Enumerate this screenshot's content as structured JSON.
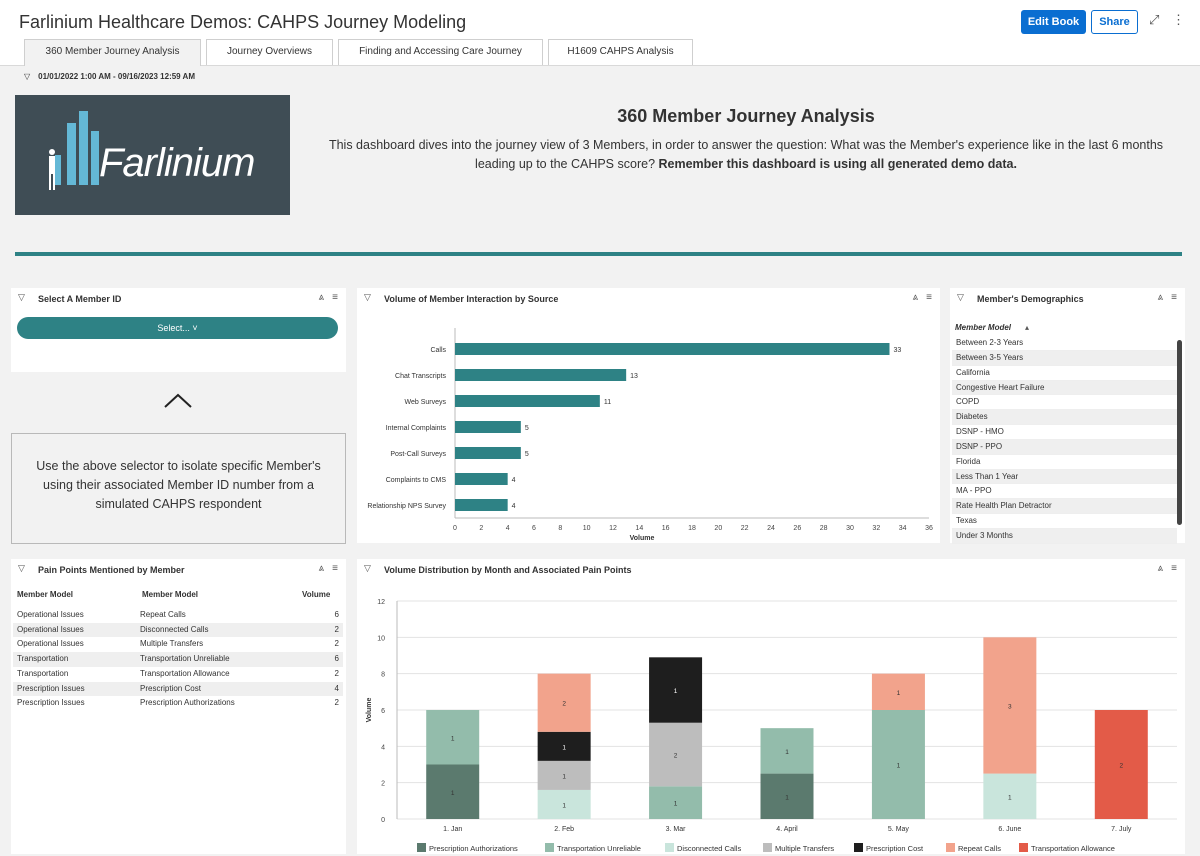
{
  "app": {
    "title": "Farlinium Healthcare Demos: CAHPS Journey Modeling",
    "edit_label": "Edit Book",
    "share_label": "Share"
  },
  "header_icons": [
    "expand-icon",
    "more-icon"
  ],
  "tabs": [
    {
      "label": "360 Member Journey Analysis",
      "active": true
    },
    {
      "label": "Journey Overviews",
      "active": false
    },
    {
      "label": "Finding and Accessing Care Journey",
      "active": false
    },
    {
      "label": "H1609 CAHPS Analysis",
      "active": false
    }
  ],
  "filter": {
    "date_range": "01/01/2022 1:00 AM - 09/16/2023 12:59 AM"
  },
  "hero": {
    "logo_text": "Farlinium",
    "title": "360 Member Journey Analysis",
    "description": "This dashboard dives into the journey view of 3 Members, in order to answer the question: What was the Member's experience like in the last 6 months leading up to the CAHPS score?",
    "description_bold": "Remember this dashboard is using all generated demo data."
  },
  "member_select": {
    "title": "Select A Member ID",
    "button_label": "Select...",
    "instruction": "Use the above selector to isolate specific Member's using their associated Member ID number from a simulated CAHPS respondent"
  },
  "volume_panel": {
    "title": "Volume of Member Interaction by Source"
  },
  "demographics": {
    "title": "Member's Demographics",
    "column": "Member Model",
    "rows": [
      "Between 2-3 Years",
      "Between 3-5 Years",
      "California",
      "Congestive Heart Failure",
      "COPD",
      "Diabetes",
      "DSNP - HMO",
      "DSNP - PPO",
      "Florida",
      "Less Than 1 Year",
      "MA - PPO",
      "Rate Health Plan Detractor",
      "Texas",
      "Under 3 Months"
    ]
  },
  "pain_points": {
    "title": "Pain Points Mentioned by Member",
    "columns": [
      "Member Model",
      "Member Model",
      "Volume"
    ],
    "rows": [
      [
        "Operational Issues",
        "Repeat Calls",
        "6"
      ],
      [
        "Operational Issues",
        "Disconnected Calls",
        "2"
      ],
      [
        "Operational Issues",
        "Multiple Transfers",
        "2"
      ],
      [
        "Transportation",
        "Transportation Unreliable",
        "6"
      ],
      [
        "Transportation",
        "Transportation Allowance",
        "2"
      ],
      [
        "Prescription Issues",
        "Prescription Cost",
        "4"
      ],
      [
        "Prescription Issues",
        "Prescription Authorizations",
        "2"
      ]
    ]
  },
  "distribution_panel": {
    "title": "Volume Distribution by Month and Associated Pain Points"
  },
  "chart_data": [
    {
      "type": "bar",
      "orientation": "horizontal",
      "categories": [
        "Calls",
        "Chat Transcripts",
        "Web Surveys",
        "Internal Complaints",
        "Post-Call Surveys",
        "Complaints to CMS",
        "Relationship NPS Survey"
      ],
      "values": [
        33,
        13,
        11,
        5,
        5,
        4,
        4
      ],
      "xlabel": "Volume",
      "xlim": [
        0,
        36
      ],
      "xticks": [
        0,
        2,
        4,
        6,
        8,
        10,
        12,
        14,
        16,
        18,
        20,
        22,
        24,
        26,
        28,
        30,
        32,
        34,
        36
      ],
      "color": "#2e8285"
    },
    {
      "type": "bar",
      "stacked": true,
      "categories": [
        "1. Jan",
        "2. Feb",
        "3. Mar",
        "4. April",
        "5. May",
        "6. June",
        "7. July"
      ],
      "ylabel": "Volume",
      "ylim": [
        0,
        12
      ],
      "yticks": [
        0,
        2,
        4,
        6,
        8,
        10,
        12
      ],
      "legend_position": "bottom",
      "series": [
        {
          "name": "Prescription Authorizations",
          "color": "#5b7a6e",
          "values": [
            3,
            0,
            0,
            2.5,
            0,
            0,
            0
          ],
          "labels": [
            "1",
            "",
            "",
            "1",
            "",
            "",
            ""
          ]
        },
        {
          "name": "Transportation Unreliable",
          "color": "#93bcab",
          "values": [
            3,
            0,
            1.8,
            2.5,
            6,
            0,
            0
          ],
          "labels": [
            "1",
            "",
            "1",
            "1",
            "1",
            "",
            ""
          ]
        },
        {
          "name": "Disconnected Calls",
          "color": "#c9e5dc",
          "values": [
            0,
            1.6,
            0,
            0,
            0,
            2.5,
            0
          ],
          "labels": [
            "",
            "1",
            "",
            "",
            "",
            "1",
            ""
          ]
        },
        {
          "name": "Multiple Transfers",
          "color": "#bdbdbd",
          "values": [
            0,
            1.6,
            3.5,
            0,
            0,
            0,
            0
          ],
          "labels": [
            "",
            "1",
            "2",
            "",
            "",
            "",
            ""
          ]
        },
        {
          "name": "Prescription Cost",
          "color": "#1e1e1e",
          "values": [
            0,
            1.6,
            3.6,
            0,
            0,
            0,
            0
          ],
          "labels": [
            "",
            "1",
            "1",
            "",
            "",
            "",
            ""
          ]
        },
        {
          "name": "Repeat Calls",
          "color": "#f2a38c",
          "values": [
            0,
            3.2,
            0,
            0,
            2,
            7.5,
            0
          ],
          "labels": [
            "",
            "2",
            "",
            "",
            "1",
            "3",
            ""
          ]
        },
        {
          "name": "Transportation Allowance",
          "color": "#e35b48",
          "values": [
            0,
            0,
            0,
            0,
            0,
            0,
            6
          ],
          "labels": [
            "",
            "",
            "",
            "",
            "",
            "",
            "2"
          ]
        }
      ]
    }
  ]
}
